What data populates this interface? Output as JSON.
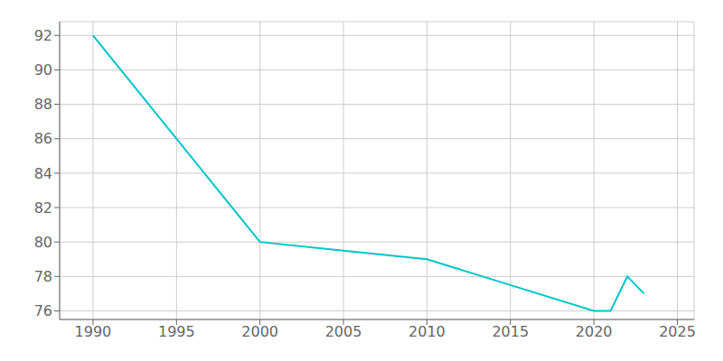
{
  "chart_data": {
    "type": "line",
    "x": [
      1990,
      2000,
      2005,
      2010,
      2015,
      2020,
      2021,
      2022,
      2023
    ],
    "values": [
      92,
      80,
      79.5,
      79,
      77.5,
      76,
      76,
      78,
      77
    ],
    "color": "#00C5C8",
    "xlim": [
      1988,
      2026
    ],
    "ylim": [
      75.5,
      92.8
    ],
    "xticks": [
      1990,
      1995,
      2000,
      2005,
      2010,
      2015,
      2020,
      2025
    ],
    "yticks": [
      76,
      78,
      80,
      82,
      84,
      86,
      88,
      90,
      92
    ],
    "grid": true
  }
}
